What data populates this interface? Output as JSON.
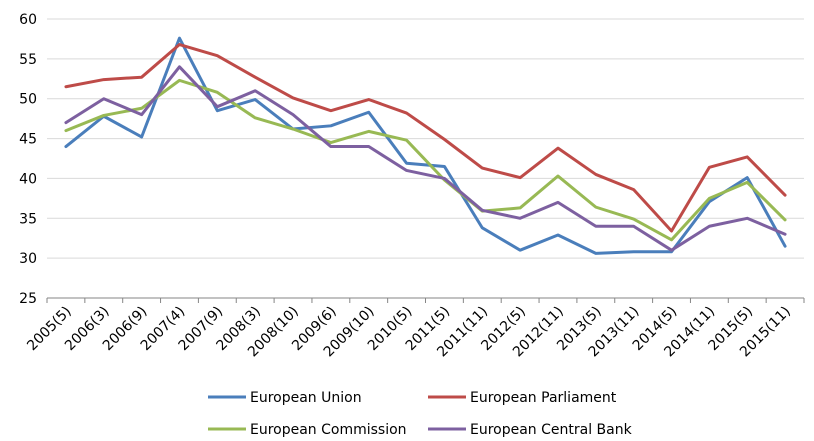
{
  "chart_data": {
    "type": "line",
    "title": "",
    "xlabel": "",
    "ylabel": "",
    "ylim": [
      25,
      60
    ],
    "yticks": [
      25,
      30,
      35,
      40,
      45,
      50,
      55,
      60
    ],
    "grid": "horizontal",
    "legend_position": "bottom",
    "categories": [
      "2005(5)",
      "2006(3)",
      "2006(9)",
      "2007(4)",
      "2007(9)",
      "2008(3)",
      "2008(10)",
      "2009(6)",
      "2009(10)",
      "2010(5)",
      "2011(5)",
      "2011(11)",
      "2012(5)",
      "2012(11)",
      "2013(5)",
      "2013(11)",
      "2014(5)",
      "2014(11)",
      "2015(5)",
      "2015(11)"
    ],
    "series": [
      {
        "name": "European Union",
        "color": "#4a7ebb",
        "values": [
          44,
          47.8,
          45.2,
          57.6,
          48.5,
          49.9,
          46.2,
          46.6,
          48.3,
          41.9,
          41.5,
          33.8,
          31,
          32.9,
          30.6,
          30.8,
          30.8,
          37.1,
          40.1,
          31.5
        ]
      },
      {
        "name": "European Parliament",
        "color": "#be4b48",
        "values": [
          51.5,
          52.4,
          52.7,
          56.8,
          55.4,
          52.7,
          50.1,
          48.5,
          49.9,
          48.2,
          44.9,
          41.3,
          40.1,
          43.8,
          40.5,
          38.6,
          33.4,
          41.4,
          42.7,
          37.9
        ]
      },
      {
        "name": "European Commission",
        "color": "#98b954",
        "values": [
          46,
          47.9,
          48.8,
          52.3,
          50.8,
          47.6,
          46.2,
          44.5,
          45.9,
          44.8,
          39.8,
          35.9,
          36.3,
          40.3,
          36.4,
          34.9,
          32.3,
          37.5,
          39.5,
          34.8
        ]
      },
      {
        "name": "European Central Bank",
        "color": "#7d60a0",
        "values": [
          47,
          50,
          48,
          54,
          49,
          51,
          48,
          44,
          44,
          41,
          40,
          36,
          35,
          37,
          34,
          34,
          31,
          34,
          35,
          33
        ]
      }
    ]
  }
}
